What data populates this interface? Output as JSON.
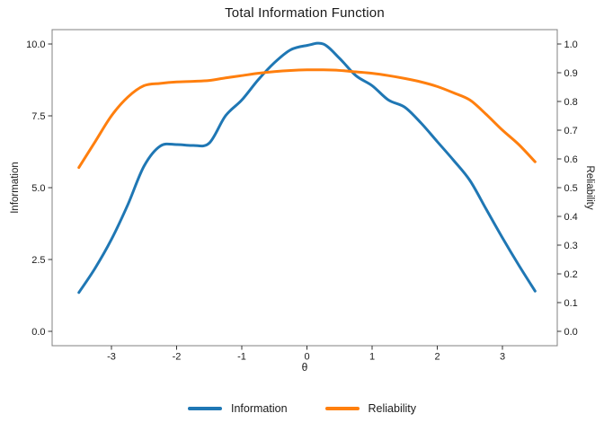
{
  "chart_data": {
    "type": "line",
    "title": "Total Information Function",
    "xlabel": "θ",
    "grid": false,
    "legend_position": "bottom-center",
    "panel_border_color": "#808080",
    "tick_color": "#333333",
    "text_color": "#1a1a1a",
    "x_axis": {
      "range": [
        -3.91,
        3.84
      ],
      "tick_values": [
        -3,
        -2,
        -1,
        0,
        1,
        2,
        3
      ],
      "tick_labels": [
        "-3",
        "-2",
        "-1",
        "0",
        "1",
        "2",
        "3"
      ]
    },
    "y_axis_left": {
      "label": "Information",
      "range": [
        -0.5,
        10.5
      ],
      "tick_values": [
        0,
        2.5,
        5,
        7.5,
        10
      ],
      "tick_labels": [
        "0.0",
        "2.5",
        "5.0",
        "7.5",
        "10.0"
      ]
    },
    "y_axis_right": {
      "label": "Reliability",
      "range": [
        -0.05,
        1.05
      ],
      "tick_values": [
        0,
        0.1,
        0.2,
        0.3,
        0.4,
        0.5,
        0.6,
        0.7,
        0.8,
        0.9,
        1.0
      ],
      "tick_labels": [
        "0.0",
        "0.1",
        "0.2",
        "0.3",
        "0.4",
        "0.5",
        "0.6",
        "0.7",
        "0.8",
        "0.9",
        "1.0"
      ]
    },
    "x": [
      -3.5,
      -3.25,
      -3.0,
      -2.75,
      -2.5,
      -2.25,
      -2.0,
      -1.75,
      -1.5,
      -1.25,
      -1.0,
      -0.75,
      -0.5,
      -0.25,
      0.0,
      0.25,
      0.5,
      0.75,
      1.0,
      1.25,
      1.5,
      1.75,
      2.0,
      2.25,
      2.5,
      2.75,
      3.0,
      3.25,
      3.5
    ],
    "series": [
      {
        "name": "Information",
        "axis": "left",
        "color": "#1f77b4",
        "values": [
          1.35,
          2.2,
          3.2,
          4.4,
          5.75,
          6.45,
          6.5,
          6.47,
          6.55,
          7.5,
          8.05,
          8.75,
          9.35,
          9.8,
          9.95,
          10.0,
          9.5,
          8.9,
          8.55,
          8.05,
          7.8,
          7.25,
          6.6,
          5.95,
          5.25,
          4.25,
          3.25,
          2.3,
          1.4
        ]
      },
      {
        "name": "Reliability",
        "axis": "right",
        "color": "#ff7f0e",
        "values": [
          0.57,
          0.66,
          0.75,
          0.815,
          0.855,
          0.863,
          0.868,
          0.87,
          0.873,
          0.882,
          0.89,
          0.898,
          0.904,
          0.908,
          0.91,
          0.91,
          0.908,
          0.903,
          0.898,
          0.89,
          0.88,
          0.868,
          0.852,
          0.83,
          0.805,
          0.755,
          0.7,
          0.65,
          0.59
        ]
      }
    ]
  }
}
